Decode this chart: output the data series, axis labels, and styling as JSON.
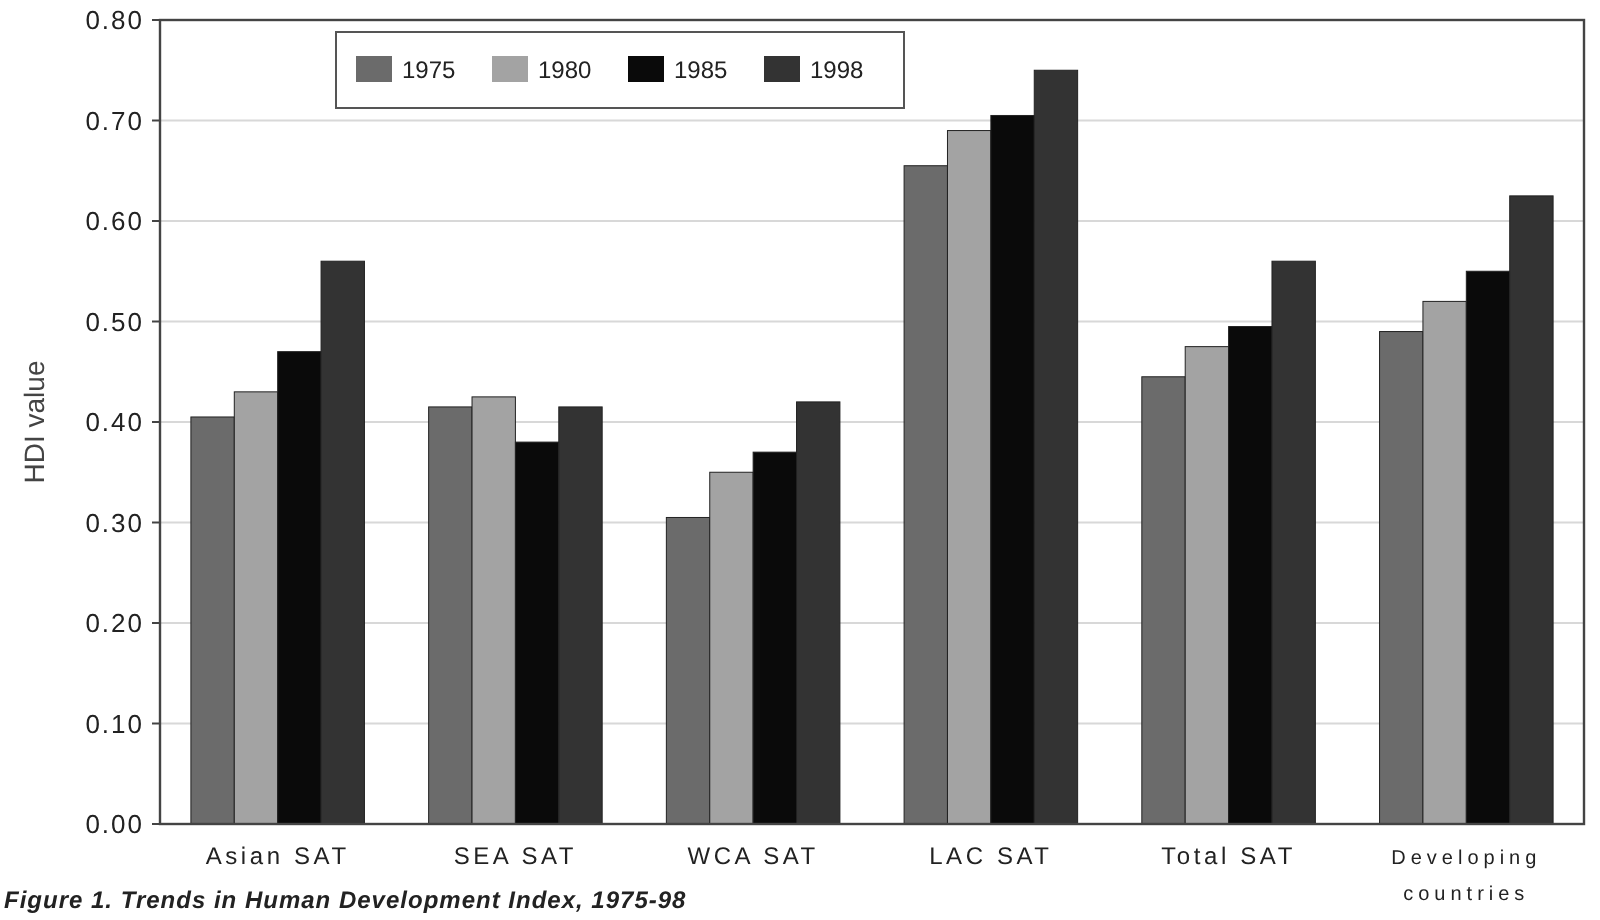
{
  "chart_data": {
    "type": "bar",
    "title": "Figure 1. Trends in Human Development Index, 1975-98",
    "ylabel": "HDI value",
    "categories": [
      "Asian SAT",
      "SEA SAT",
      "WCA SAT",
      "LAC SAT",
      "Total SAT",
      "Developing countries"
    ],
    "series": [
      {
        "name": "1975",
        "color": "#6b6b6b",
        "values": [
          0.405,
          0.415,
          0.305,
          0.655,
          0.445,
          0.49
        ]
      },
      {
        "name": "1980",
        "color": "#a3a3a3",
        "values": [
          0.43,
          0.425,
          0.35,
          0.69,
          0.475,
          0.52
        ]
      },
      {
        "name": "1985",
        "color": "#0a0a0a",
        "values": [
          0.47,
          0.38,
          0.37,
          0.705,
          0.495,
          0.55
        ]
      },
      {
        "name": "1998",
        "color": "#333333",
        "values": [
          0.56,
          0.415,
          0.42,
          0.75,
          0.56,
          0.625
        ]
      }
    ],
    "ylim": [
      0,
      0.8
    ],
    "yticks": [
      {
        "value": 0,
        "label": "0.00"
      },
      {
        "value": 0.1,
        "label": "0.10"
      },
      {
        "value": 0.2,
        "label": "0.20"
      },
      {
        "value": 0.3,
        "label": "0.30"
      },
      {
        "value": 0.4,
        "label": "0.40"
      },
      {
        "value": 0.5,
        "label": "0.50"
      },
      {
        "value": 0.6,
        "label": "0.60"
      },
      {
        "value": 0.7,
        "label": "0.70"
      },
      {
        "value": 0.8,
        "label": "0.80"
      }
    ],
    "grid": "y",
    "legend": "top"
  }
}
